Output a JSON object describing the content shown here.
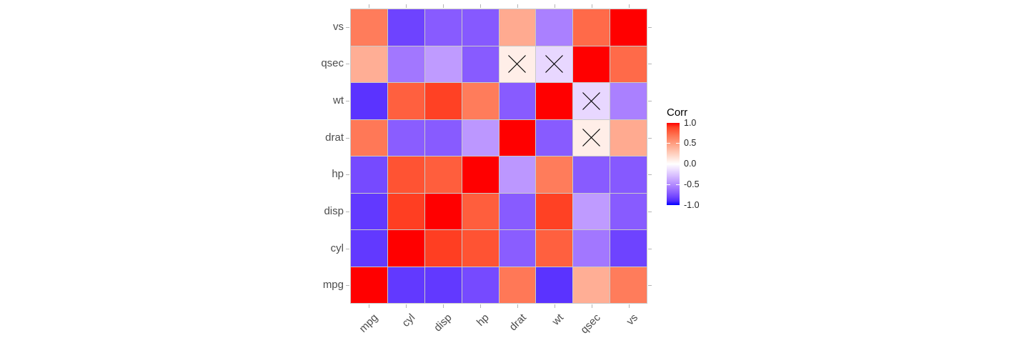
{
  "chart_data": {
    "type": "heatmap",
    "subtype": "correlation-matrix",
    "x_categories": [
      "mpg",
      "cyl",
      "disp",
      "hp",
      "drat",
      "wt",
      "qsec",
      "vs"
    ],
    "y_categories_top_to_bottom": [
      "vs",
      "qsec",
      "wt",
      "drat",
      "hp",
      "disp",
      "cyl",
      "mpg"
    ],
    "rows": [
      {
        "var": "vs",
        "values": [
          0.66,
          -0.81,
          -0.71,
          -0.72,
          0.44,
          -0.55,
          0.74,
          1.0
        ]
      },
      {
        "var": "qsec",
        "values": [
          0.42,
          -0.59,
          -0.43,
          -0.71,
          0.09,
          -0.17,
          1.0,
          0.74
        ]
      },
      {
        "var": "wt",
        "values": [
          -0.87,
          0.78,
          0.89,
          0.66,
          -0.71,
          1.0,
          -0.17,
          -0.55
        ]
      },
      {
        "var": "drat",
        "values": [
          0.68,
          -0.7,
          -0.71,
          -0.45,
          1.0,
          -0.71,
          0.09,
          0.44
        ]
      },
      {
        "var": "hp",
        "values": [
          -0.78,
          0.83,
          0.79,
          1.0,
          -0.45,
          0.66,
          -0.71,
          -0.72
        ]
      },
      {
        "var": "disp",
        "values": [
          -0.85,
          0.9,
          1.0,
          0.79,
          -0.71,
          0.89,
          -0.43,
          -0.71
        ]
      },
      {
        "var": "cyl",
        "values": [
          -0.85,
          1.0,
          0.9,
          0.83,
          -0.7,
          0.78,
          -0.59,
          -0.81
        ]
      },
      {
        "var": "mpg",
        "values": [
          1.0,
          -0.85,
          -0.85,
          -0.78,
          0.68,
          -0.87,
          0.42,
          0.66
        ]
      }
    ],
    "crossed_not_significant": [
      {
        "row": "qsec",
        "col": "drat"
      },
      {
        "row": "qsec",
        "col": "wt"
      },
      {
        "row": "wt",
        "col": "qsec"
      },
      {
        "row": "drat",
        "col": "qsec"
      }
    ],
    "value_range": [
      -1,
      1
    ],
    "legend": {
      "title": "Corr",
      "tick_labels": [
        "1.0",
        "0.5",
        "0.0",
        "-0.5",
        "-1.0"
      ],
      "tick_values": [
        1.0,
        0.5,
        0.0,
        -0.5,
        -1.0
      ],
      "position": "right"
    },
    "colors": {
      "high": "#FF0000",
      "mid": "#FFFFFF",
      "low": "#0000FF",
      "cell_border": "#C9C9C9",
      "axis_tick": "#B5B5B5",
      "axis_text": "#4D4D4D",
      "legend_title_text": "#000000",
      "legend_tick_text": "#262626",
      "cross_mark": "#000000"
    },
    "grid": false
  }
}
